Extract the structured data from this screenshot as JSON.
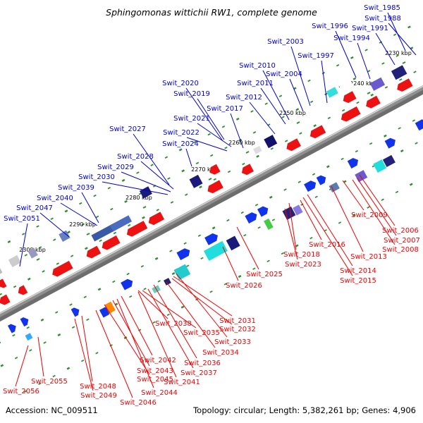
{
  "title": "Sphingomonas wittichii RW1, complete genome",
  "footer": {
    "accession": "Accession: NC_009511",
    "topology": "Topology: circular; Length: 5,382,261 bp; Genes: 4,906"
  },
  "colors": {
    "forward_label": "#0000cc",
    "reverse_label": "#ee0000",
    "backbone": "#8f8f8f",
    "tick": "#2f8f2f"
  },
  "kbp_ticks": [
    "2230 kbp",
    "2240 kbp",
    "2250 kbp",
    "2260 kbp",
    "2270 kbp",
    "2280 kbp",
    "2290 kbp",
    "2300 kbp"
  ],
  "forward_genes": [
    "Swit_1985",
    "Swit_1988",
    "Swit_1991",
    "Swit_1994",
    "Swit_1996",
    "Swit_1997",
    "Swit_2003",
    "Swit_2004",
    "Swit_2010",
    "Swit_2011",
    "Swit_2012",
    "Swit_2017",
    "Swit_2019",
    "Swit_2020",
    "Swit_2021",
    "Swit_2022",
    "Swit_2024",
    "Swit_2027",
    "Swit_2028",
    "Swit_2029",
    "Swit_2030",
    "Swit_2039",
    "Swit_2040",
    "Swit_2047",
    "Swit_2051"
  ],
  "reverse_genes": [
    "Swit_2006",
    "Swit_2007",
    "Swit_2008",
    "Swit_2009",
    "Swit_2013",
    "Swit_2014",
    "Swit_2015",
    "Swit_2016",
    "Swit_2018",
    "Swit_2023",
    "Swit_2025",
    "Swit_2026",
    "Swit_2031",
    "Swit_2032",
    "Swit_2033",
    "Swit_2034",
    "Swit_2035",
    "Swit_2036",
    "Swit_2037",
    "Swit_2038",
    "Swit_2041",
    "Swit_2042",
    "Swit_2043",
    "Swit_2044",
    "Swit_2045",
    "Swit_2046",
    "Swit_2048",
    "Swit_2049",
    "Swit_2055",
    "Swit_2056"
  ]
}
